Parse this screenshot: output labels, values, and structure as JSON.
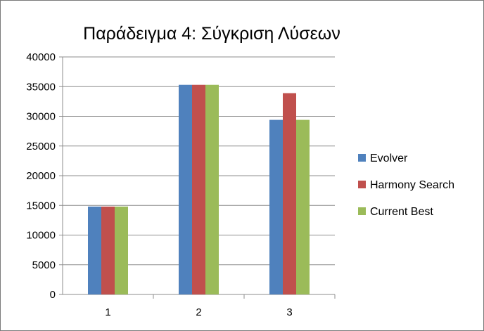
{
  "chart_data": {
    "type": "bar",
    "title": "Παράδειγμα 4: Σύγκριση Λύσεων",
    "xlabel": "",
    "ylabel": "",
    "categories": [
      "1",
      "2",
      "3"
    ],
    "ylim": [
      0,
      40000
    ],
    "yticks": [
      0,
      5000,
      10000,
      15000,
      20000,
      25000,
      30000,
      35000,
      40000
    ],
    "grid": "horizontal",
    "legend_position": "right",
    "series": [
      {
        "name": "Evolver",
        "color": "#4f81bd",
        "values": [
          14800,
          35300,
          29400
        ]
      },
      {
        "name": "Harmony Search",
        "color": "#c0504d",
        "values": [
          14800,
          35300,
          33900
        ]
      },
      {
        "name": "Current Best",
        "color": "#9bbb59",
        "values": [
          14800,
          35300,
          29400
        ]
      }
    ]
  }
}
